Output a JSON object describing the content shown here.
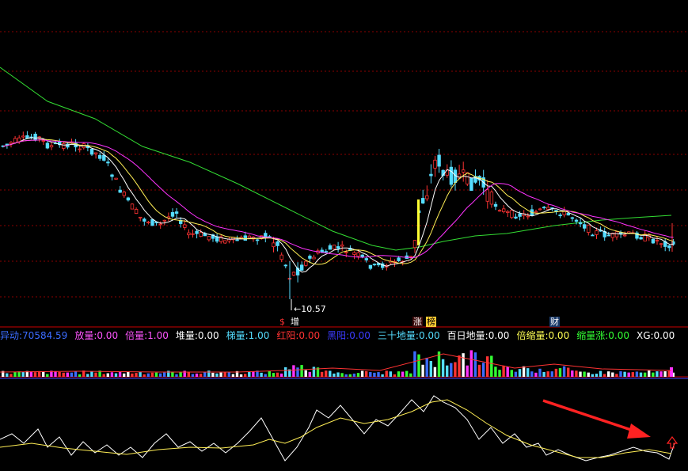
{
  "indicator_bar": [
    {
      "label": "异动:",
      "value": "70584.59",
      "color": "#3b6cff"
    },
    {
      "label": "放量:",
      "value": "0.00",
      "color": "#ff55ff"
    },
    {
      "label": "倍量:",
      "value": "1.00",
      "color": "#ff55ff"
    },
    {
      "label": "堆量:",
      "value": "0.00",
      "color": "#ffffff"
    },
    {
      "label": "梯量:",
      "value": "1.00",
      "color": "#55ddff"
    },
    {
      "label": "红阳:",
      "value": "0.00",
      "color": "#ff3333"
    },
    {
      "label": "黑阳:",
      "value": "0.00",
      "color": "#3b3bff"
    },
    {
      "label": "三十地量:",
      "value": "0.00",
      "color": "#55ddff"
    },
    {
      "label": "百日地量:",
      "value": "0.00",
      "color": "#ffffff"
    },
    {
      "label": "倍缩量:",
      "value": "0.00",
      "color": "#ffff55"
    },
    {
      "label": "缩量涨:",
      "value": "0.00",
      "color": "#33ff33"
    },
    {
      "label": "XG:",
      "value": "0.00",
      "color": "#ffffff"
    }
  ],
  "annotations": {
    "low_price": "10.57",
    "tags": [
      {
        "text": "增",
        "color": "#ffffff",
        "bg": "#000000"
      },
      {
        "text": "涨",
        "color": "#ffffff",
        "bg": "#3a0a0a"
      },
      {
        "text": "榜",
        "color": "#000000",
        "bg": "#ffcc33"
      },
      {
        "text": "财",
        "color": "#ffffff",
        "bg": "#1a3a6a"
      }
    ],
    "small_mark": "$"
  },
  "colors": {
    "up": "#ff3333",
    "down": "#55ddff",
    "ma_short": "#ffffff",
    "ma_mid": "#ffee55",
    "ma_long": "#ff33ff",
    "ma_60": "#33dd33",
    "grid": "#8b0000",
    "arrow": "#ff2222"
  },
  "chart_data": [
    {
      "type": "candlestick",
      "panel": "price",
      "ylim": [
        10.2,
        16.5
      ],
      "series": [
        {
          "name": "",
          "values": []
        }
      ],
      "low_marker": 10.57
    },
    {
      "type": "bar",
      "panel": "volume"
    },
    {
      "type": "line",
      "panel": "oscillator",
      "series": [
        {
          "name": "",
          "values": []
        },
        {
          "name": "",
          "values": []
        }
      ]
    }
  ]
}
